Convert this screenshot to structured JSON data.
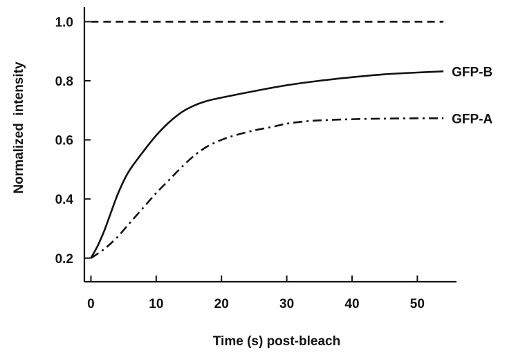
{
  "chart_data": {
    "type": "line",
    "title": "",
    "xlabel": "Time (s) post-bleach",
    "ylabel": "Normalized  intensity",
    "xlim": [
      -1,
      56
    ],
    "ylim": [
      0.12,
      1.05
    ],
    "xticks": [
      0,
      10,
      20,
      30,
      40,
      50
    ],
    "xtick_labels": [
      "0",
      "10",
      "20",
      "30",
      "40",
      "50"
    ],
    "yticks": [
      0.2,
      0.4,
      0.6,
      0.8,
      1.0
    ],
    "ytick_labels": [
      "0.2",
      "0.4",
      "0.6",
      "0.8",
      "1.0"
    ],
    "grid": false,
    "legend": "none; series labelled at line ends on the right",
    "series": [
      {
        "name": "GFP-B",
        "line_style": "solid",
        "color": "#111111",
        "x": [
          0,
          1,
          2,
          3,
          4,
          5,
          6,
          8,
          10,
          12,
          14,
          16,
          18,
          20,
          25,
          30,
          35,
          40,
          45,
          50,
          54
        ],
        "y": [
          0.2,
          0.24,
          0.29,
          0.35,
          0.41,
          0.46,
          0.5,
          0.56,
          0.615,
          0.66,
          0.695,
          0.718,
          0.733,
          0.743,
          0.765,
          0.785,
          0.8,
          0.812,
          0.822,
          0.828,
          0.832
        ]
      },
      {
        "name": "GFP-A",
        "line_style": "dash-dot",
        "color": "#111111",
        "x": [
          0,
          2,
          4,
          6,
          8,
          10,
          12,
          14,
          16,
          18,
          20,
          22,
          25,
          28,
          30,
          33,
          36,
          40,
          45,
          50,
          54
        ],
        "y": [
          0.2,
          0.23,
          0.27,
          0.32,
          0.37,
          0.42,
          0.465,
          0.51,
          0.55,
          0.58,
          0.6,
          0.615,
          0.632,
          0.645,
          0.655,
          0.663,
          0.667,
          0.67,
          0.672,
          0.673,
          0.673
        ]
      },
      {
        "name": "",
        "line_style": "dashed",
        "color": "#111111",
        "x": [
          0,
          54
        ],
        "y": [
          1.0,
          1.0
        ]
      }
    ]
  }
}
